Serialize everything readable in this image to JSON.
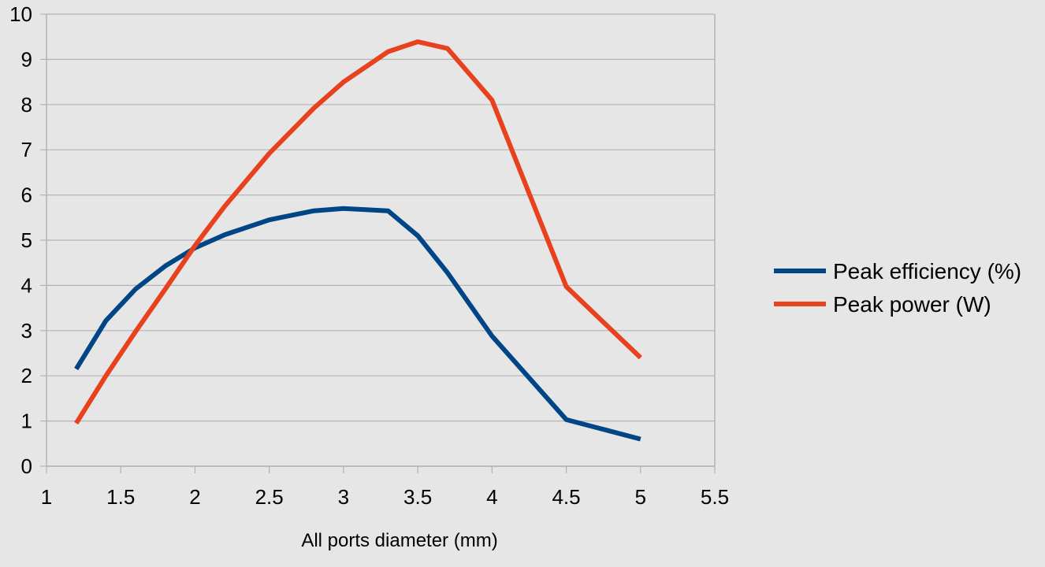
{
  "chart_data": {
    "type": "line",
    "title": "",
    "xlabel": "All ports diameter (mm)",
    "ylabel": "",
    "xlim": [
      1,
      5.5
    ],
    "ylim": [
      0,
      10
    ],
    "xticks": [
      "1",
      "1.5",
      "2",
      "2.5",
      "3",
      "3.5",
      "4",
      "4.5",
      "5",
      "5.5"
    ],
    "yticks": [
      "0",
      "1",
      "2",
      "3",
      "4",
      "5",
      "6",
      "7",
      "8",
      "9",
      "10"
    ],
    "grid": "horizontal",
    "legend_position": "right",
    "series": [
      {
        "name": "Peak efficiency (%)",
        "color": "#004586",
        "x": [
          1.2,
          1.4,
          1.6,
          1.8,
          2.0,
          2.2,
          2.5,
          2.8,
          3.0,
          3.3,
          3.5,
          3.7,
          4.0,
          4.5,
          5.0
        ],
        "y": [
          2.15,
          3.22,
          3.92,
          4.43,
          4.83,
          5.12,
          5.45,
          5.65,
          5.7,
          5.65,
          5.1,
          4.28,
          2.88,
          1.03,
          0.6
        ]
      },
      {
        "name": "Peak power (W)",
        "color": "#e8411d",
        "x": [
          1.2,
          1.4,
          1.6,
          1.8,
          2.0,
          2.2,
          2.5,
          2.8,
          3.0,
          3.3,
          3.5,
          3.7,
          4.0,
          4.5,
          5.0
        ],
        "y": [
          0.95,
          2.0,
          2.98,
          3.92,
          4.88,
          5.75,
          6.92,
          7.92,
          8.5,
          9.17,
          9.39,
          9.24,
          8.1,
          3.97,
          2.4
        ]
      }
    ]
  }
}
